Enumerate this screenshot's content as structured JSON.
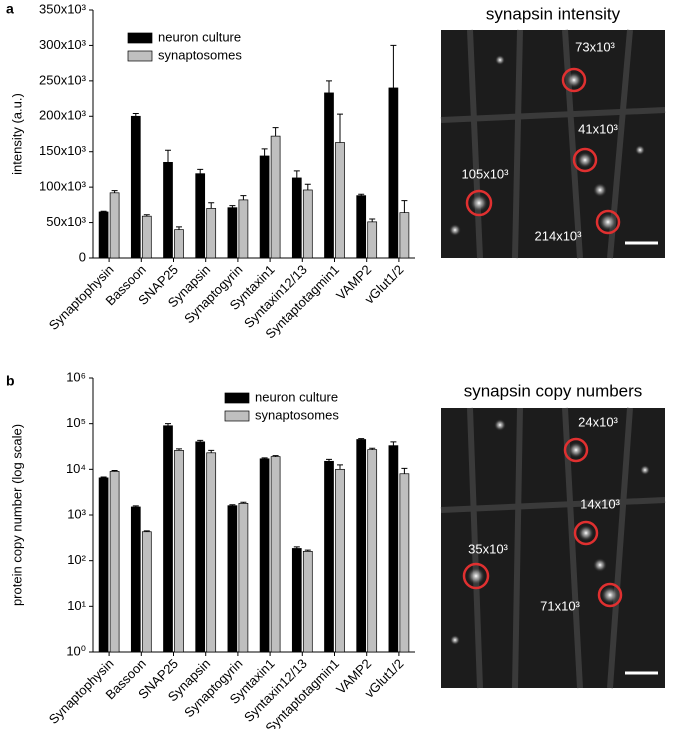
{
  "panels": [
    "a",
    "b"
  ],
  "images": [
    {
      "title": "synapsin intensity",
      "labels": [
        "73x10³",
        "41x10³",
        "105x10³",
        "214x10³"
      ]
    },
    {
      "title": "synapsin copy numbers",
      "labels": [
        "24x10³",
        "14x10³",
        "35x10³",
        "71x10³"
      ]
    }
  ],
  "chart_data": [
    {
      "type": "bar",
      "ylabel": "intensity (a.u.)",
      "categories": [
        "Synaptophysin",
        "Bassoon",
        "SNAP25",
        "Synapsin",
        "Synaptogyrin",
        "Syntaxin1",
        "Syntaxin12/13",
        "Syntaptotagmin1",
        "VAMP2",
        "vGlut1/2"
      ],
      "series": [
        {
          "name": "neuron culture",
          "color": "#000000",
          "values": [
            65000,
            200000,
            135000,
            119000,
            71000,
            144000,
            113000,
            233000,
            88000,
            240000
          ],
          "errors": [
            1000,
            4000,
            17000,
            6000,
            3000,
            10000,
            10000,
            17000,
            2000,
            60000
          ]
        },
        {
          "name": "synaptosomes",
          "color": "#bfbfbf",
          "values": [
            92000,
            59000,
            40000,
            70000,
            82000,
            172000,
            96000,
            163000,
            51000,
            64000
          ],
          "errors": [
            3000,
            2000,
            4000,
            8000,
            6000,
            12000,
            8000,
            40000,
            4000,
            17000
          ]
        }
      ],
      "ylim": [
        0,
        350000
      ],
      "yticks": [
        0,
        {
          "value": 50000,
          "label": "50x10³"
        },
        {
          "value": 100000,
          "label": "100x10³"
        },
        {
          "value": 150000,
          "label": "150x10³"
        },
        {
          "value": 200000,
          "label": "200x10³"
        },
        {
          "value": 250000,
          "label": "250x10³"
        },
        {
          "value": 300000,
          "label": "300x10³"
        },
        {
          "value": 350000,
          "label": "350x10³"
        }
      ],
      "log": false
    },
    {
      "type": "bar",
      "ylabel": "protein copy number (log scale)",
      "categories": [
        "Synaptophysin",
        "Bassoon",
        "SNAP25",
        "Synapsin",
        "Synaptogyrin",
        "Syntaxin1",
        "Syntaxin12/13",
        "Syntaptotagmin1",
        "VAMP2",
        "vGlut1/2"
      ],
      "series": [
        {
          "name": "neuron culture",
          "color": "#000000",
          "values": [
            6500,
            1500,
            90000,
            40000,
            1600,
            17000,
            185,
            15000,
            45000,
            33000
          ],
          "errors": [
            300,
            80,
            10000,
            3000,
            80,
            800,
            15,
            1500,
            2000,
            7000
          ]
        },
        {
          "name": "synaptosomes",
          "color": "#bfbfbf",
          "values": [
            9000,
            430,
            26000,
            23000,
            1800,
            19000,
            160,
            10000,
            27000,
            8000
          ],
          "errors": [
            400,
            20,
            2000,
            3000,
            100,
            1000,
            10,
            2500,
            2000,
            2500
          ]
        }
      ],
      "ylim": [
        1,
        1000000
      ],
      "yticks": [
        {
          "value": 1,
          "label": "10⁰"
        },
        {
          "value": 10,
          "label": "10¹"
        },
        {
          "value": 100,
          "label": "10²"
        },
        {
          "value": 1000,
          "label": "10³"
        },
        {
          "value": 10000,
          "label": "10⁴"
        },
        {
          "value": 100000,
          "label": "10⁵"
        },
        {
          "value": 1000000,
          "label": "10⁶"
        }
      ],
      "log": true
    }
  ]
}
